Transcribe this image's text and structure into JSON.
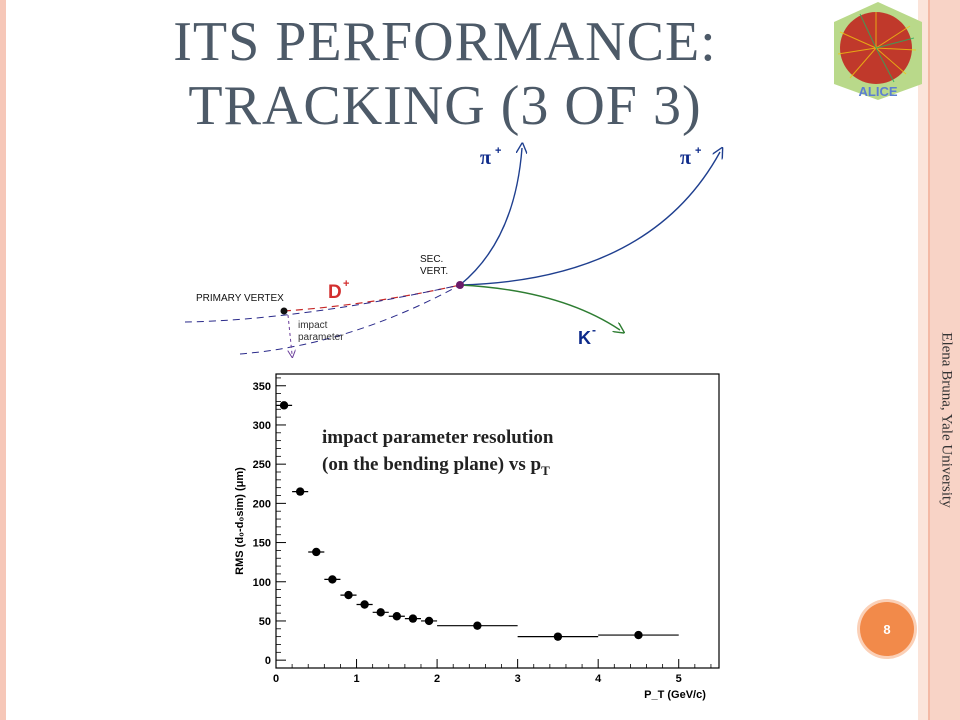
{
  "slide": {
    "title_line1": "ITS PERFORMANCE:",
    "title_line2": "TRACKING (3 OF 3)",
    "author": "Elena Bruna, Yale University",
    "page_number": "8",
    "logo_text": "ALICE"
  },
  "diagram": {
    "primary_vertex": "PRIMARY VERTEX",
    "sec_vert_1": "SEC.",
    "sec_vert_2": "VERT.",
    "d_plus": "D",
    "d_plus_sup": "+",
    "impact_1": "impact",
    "impact_2": "parameter",
    "pion": "π",
    "pion_sup": "+",
    "kaon": "K",
    "kaon_sup": "-"
  },
  "annotation": {
    "line1": "impact parameter  resolution",
    "line2": "(on the bending plane) vs p",
    "line2_sub": "T"
  },
  "chart_data": {
    "type": "scatter",
    "ylabel": "RMS (d₀-d₀sim) (μm)",
    "xlabel": "P_T (GeV/c)",
    "xlim": [
      0,
      5.5
    ],
    "ylim": [
      0,
      360
    ],
    "x_ticks": [
      "0",
      "1",
      "2",
      "3",
      "4",
      "5"
    ],
    "y_ticks": [
      "0",
      "50",
      "100",
      "150",
      "200",
      "250",
      "300",
      "350"
    ],
    "grid": false,
    "series": [
      {
        "x": [
          0.1,
          0.3,
          0.5,
          0.7,
          0.9,
          1.1,
          1.3,
          1.5,
          1.7,
          1.9,
          2.5,
          3.5,
          4.5
        ],
        "xerr": [
          0.1,
          0.1,
          0.1,
          0.1,
          0.1,
          0.1,
          0.1,
          0.1,
          0.1,
          0.1,
          0.5,
          0.5,
          0.5
        ],
        "y": [
          325,
          215,
          138,
          103,
          83,
          71,
          61,
          56,
          53,
          50,
          44,
          30,
          32
        ]
      }
    ]
  },
  "colors": {
    "title": "#4d5a68",
    "pion_track": "#1f3f8f",
    "kaon_track": "#2e7d32",
    "d_track": "#c62828",
    "label_blue": "#0d2a8a",
    "label_red": "#d32f2f",
    "badge": "#f28a4a"
  }
}
